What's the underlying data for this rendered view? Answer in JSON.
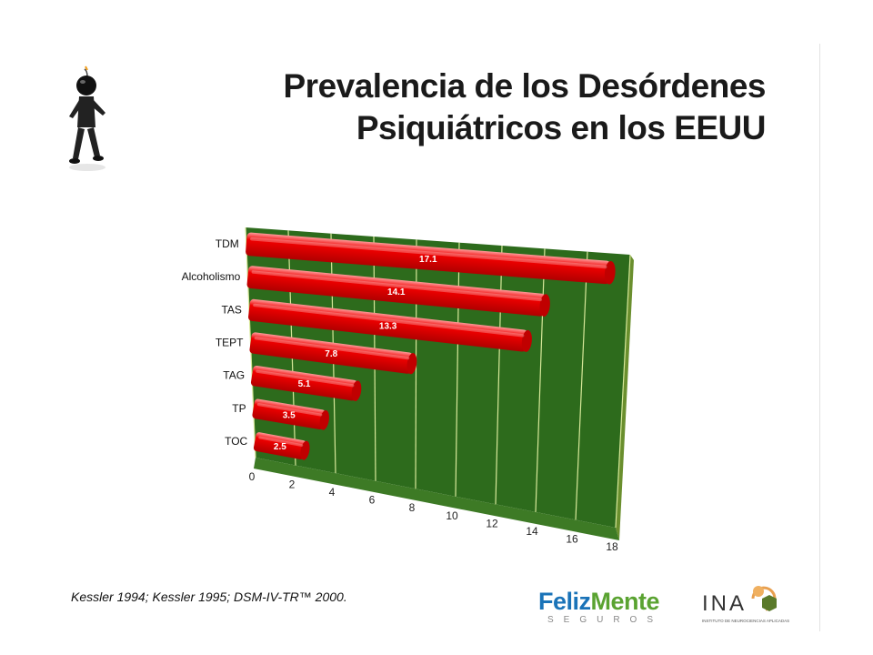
{
  "slide": {
    "title_lines": [
      "Prevalencia de los Desórdenes",
      "Psiquiátricos en los EEUU"
    ],
    "citation": "Kessler 1994; Kessler 1995; DSM-IV-TR™ 2000.",
    "logos": {
      "felizmente_word1": "Feliz",
      "felizmente_word2": "Mente",
      "felizmente_sub": "SEGUROS",
      "ina_text": "INA",
      "ina_sub": "INSTITUTO DE NEUROCIENCIAS APLICADAS"
    }
  },
  "colors": {
    "bar": "#f00000",
    "plot_bg": "#2d6b1c",
    "grid": "#d7e89a",
    "floor": "#3d7a25"
  },
  "chart_data": {
    "type": "bar",
    "orientation": "horizontal",
    "title": "",
    "xlabel": "",
    "ylabel": "",
    "categories": [
      "TDM",
      "Alcoholismo",
      "TAS",
      "TEPT",
      "TAG",
      "TP",
      "TOC"
    ],
    "values": [
      17.1,
      14.1,
      13.3,
      7.8,
      5.1,
      3.5,
      2.5
    ],
    "data_labels": [
      "17.1",
      "14.1",
      "13.3",
      "7.8",
      "5.1",
      "3.5",
      "2.5"
    ],
    "x_ticks": [
      0,
      2,
      4,
      6,
      8,
      10,
      12,
      14,
      16,
      18
    ],
    "xlim": [
      0,
      18
    ],
    "grid": true,
    "legend": "none"
  }
}
